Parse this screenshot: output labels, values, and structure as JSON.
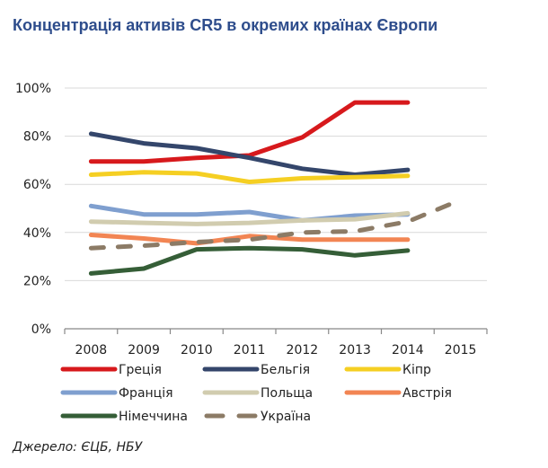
{
  "title": "Концентрація активів CR5 в окремих країнах Європи",
  "source": "Джерело: ЄЦБ, НБУ",
  "chart_data": {
    "type": "line",
    "title": "Концентрація активів CR5 в окремих країнах Європи",
    "xlabel": "",
    "ylabel": "",
    "categories": [
      "2008",
      "2009",
      "2010",
      "2011",
      "2012",
      "2013",
      "2014",
      "2015"
    ],
    "ylim": [
      0,
      100
    ],
    "yticks": [
      "0%",
      "20%",
      "40%",
      "60%",
      "80%",
      "100%"
    ],
    "ytick_values": [
      0,
      20,
      40,
      60,
      80,
      100
    ],
    "grid": true,
    "legend_position": "bottom",
    "series": [
      {
        "name": "Греція",
        "color": "#d7191c",
        "dashed": false,
        "values": [
          69.5,
          69.5,
          71,
          72,
          79.5,
          94,
          94,
          null
        ]
      },
      {
        "name": "Бельгія",
        "color": "#34466b",
        "dashed": false,
        "values": [
          81,
          77,
          75,
          71,
          66.5,
          64,
          66,
          null
        ]
      },
      {
        "name": "Кіпр",
        "color": "#f5cf23",
        "dashed": false,
        "values": [
          64,
          65,
          64.5,
          61,
          62.5,
          63,
          63.5,
          null
        ]
      },
      {
        "name": "Франція",
        "color": "#7f9fcf",
        "dashed": false,
        "values": [
          51,
          47.5,
          47.5,
          48.5,
          45,
          47,
          47.5,
          null
        ]
      },
      {
        "name": "Польща",
        "color": "#d1ccaf",
        "dashed": false,
        "values": [
          44.5,
          44,
          43.5,
          44,
          45,
          45.5,
          48,
          null
        ]
      },
      {
        "name": "Австрія",
        "color": "#f28553",
        "dashed": false,
        "values": [
          39,
          37.5,
          35.5,
          38.5,
          37,
          37,
          37,
          null
        ]
      },
      {
        "name": "Німеччина",
        "color": "#355e37",
        "dashed": false,
        "values": [
          23,
          25,
          33,
          33.5,
          33,
          30.5,
          32.5,
          null
        ]
      },
      {
        "name": "Україна",
        "color": "#8c7b66",
        "dashed": true,
        "values": [
          33.5,
          34.5,
          36,
          37,
          40,
          40.5,
          44.5,
          53.5
        ]
      }
    ]
  }
}
